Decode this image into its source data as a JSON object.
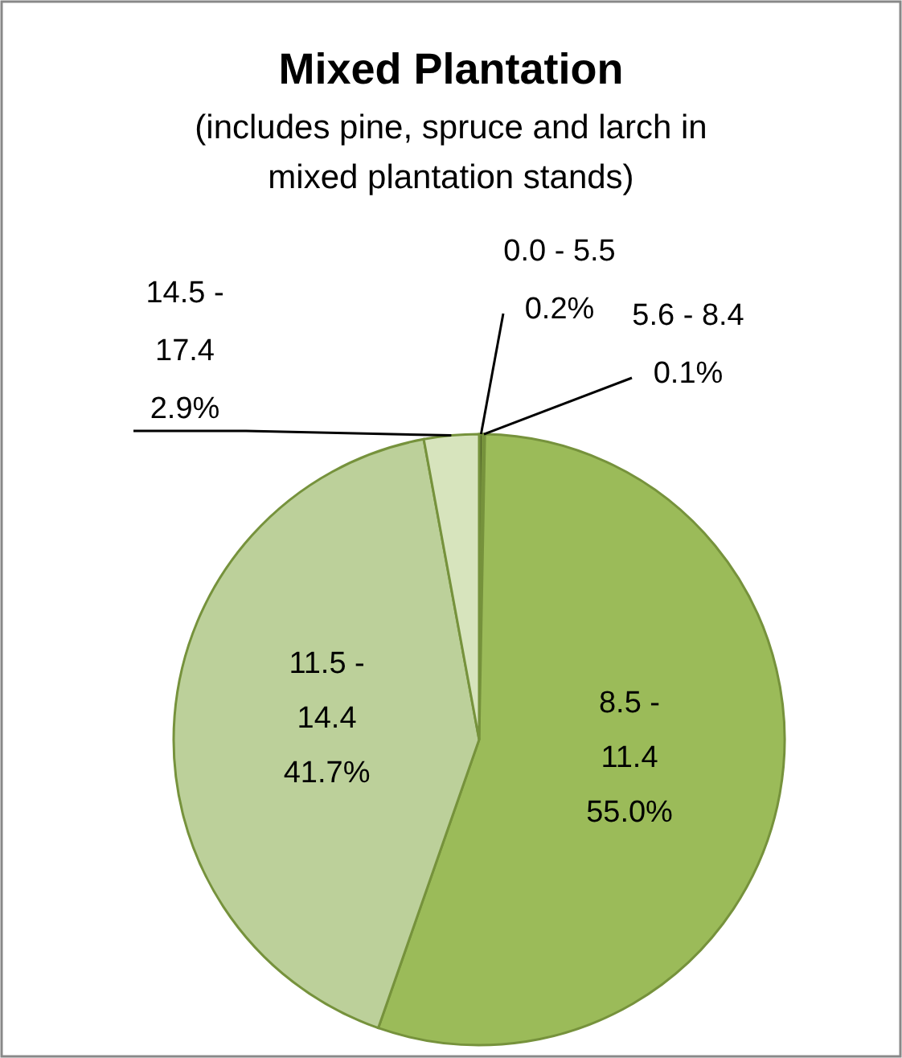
{
  "chart_data": {
    "type": "pie",
    "title": "Mixed Plantation",
    "subtitle": "(includes pine, spruce and larch in mixed plantation stands)",
    "categories": [
      "0.0 - 5.5",
      "5.6 - 8.4",
      "8.5 - 11.4",
      "11.5 - 14.4",
      "14.5 - 17.4"
    ],
    "values": [
      0.2,
      0.1,
      55.0,
      41.7,
      2.9
    ],
    "value_labels": [
      "0.2%",
      "0.1%",
      "55.0%",
      "41.7%",
      "2.9%"
    ],
    "colors": [
      "#4f6228",
      "#76923c",
      "#9bbb59",
      "#bcd09a",
      "#d7e4bd"
    ]
  }
}
